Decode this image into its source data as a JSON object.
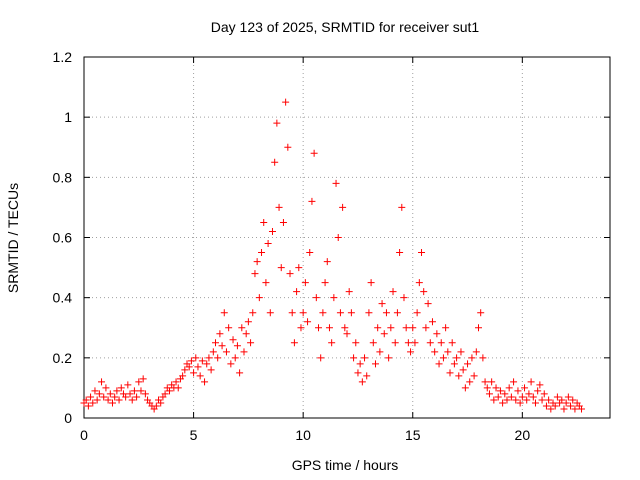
{
  "chart_data": {
    "type": "scatter",
    "title": "Day 123 of 2025, SRMTID for receiver sut1",
    "xlabel": "GPS time / hours",
    "ylabel": "SRMTID / TECUs",
    "xlim": [
      0,
      24
    ],
    "ylim": [
      0,
      1.2
    ],
    "xticks": [
      0,
      5,
      10,
      15,
      20
    ],
    "xtick_labels": [
      "0",
      "5",
      "10",
      "15",
      "20"
    ],
    "yticks": [
      0,
      0.2,
      0.4,
      0.6,
      0.8,
      1.0,
      1.2
    ],
    "ytick_labels": [
      "0",
      "0.2",
      "0.4",
      "0.6",
      "0.8",
      "1",
      "1.2"
    ],
    "grid": true,
    "marker": "+",
    "color": "#ff0000",
    "series": [
      {
        "name": "SRMTID",
        "points": [
          [
            0.0,
            0.05
          ],
          [
            0.1,
            0.06
          ],
          [
            0.2,
            0.04
          ],
          [
            0.3,
            0.07
          ],
          [
            0.4,
            0.05
          ],
          [
            0.5,
            0.09
          ],
          [
            0.6,
            0.06
          ],
          [
            0.7,
            0.08
          ],
          [
            0.8,
            0.12
          ],
          [
            0.9,
            0.07
          ],
          [
            1.0,
            0.1
          ],
          [
            1.1,
            0.06
          ],
          [
            1.2,
            0.08
          ],
          [
            1.3,
            0.05
          ],
          [
            1.4,
            0.07
          ],
          [
            1.5,
            0.09
          ],
          [
            1.6,
            0.06
          ],
          [
            1.7,
            0.1
          ],
          [
            1.8,
            0.08
          ],
          [
            1.9,
            0.07
          ],
          [
            2.0,
            0.11
          ],
          [
            2.1,
            0.08
          ],
          [
            2.2,
            0.06
          ],
          [
            2.3,
            0.09
          ],
          [
            2.4,
            0.07
          ],
          [
            2.5,
            0.12
          ],
          [
            2.6,
            0.09
          ],
          [
            2.7,
            0.13
          ],
          [
            2.8,
            0.08
          ],
          [
            2.9,
            0.06
          ],
          [
            3.0,
            0.05
          ],
          [
            3.1,
            0.04
          ],
          [
            3.2,
            0.03
          ],
          [
            3.3,
            0.04
          ],
          [
            3.4,
            0.06
          ],
          [
            3.5,
            0.05
          ],
          [
            3.6,
            0.07
          ],
          [
            3.7,
            0.08
          ],
          [
            3.8,
            0.1
          ],
          [
            3.9,
            0.09
          ],
          [
            4.0,
            0.11
          ],
          [
            4.1,
            0.1
          ],
          [
            4.2,
            0.12
          ],
          [
            4.3,
            0.1
          ],
          [
            4.4,
            0.13
          ],
          [
            4.5,
            0.14
          ],
          [
            4.6,
            0.16
          ],
          [
            4.7,
            0.18
          ],
          [
            4.8,
            0.17
          ],
          [
            4.9,
            0.19
          ],
          [
            5.0,
            0.15
          ],
          [
            5.1,
            0.2
          ],
          [
            5.2,
            0.17
          ],
          [
            5.3,
            0.14
          ],
          [
            5.4,
            0.19
          ],
          [
            5.5,
            0.12
          ],
          [
            5.6,
            0.18
          ],
          [
            5.7,
            0.2
          ],
          [
            5.8,
            0.16
          ],
          [
            5.9,
            0.22
          ],
          [
            6.0,
            0.25
          ],
          [
            6.1,
            0.2
          ],
          [
            6.2,
            0.28
          ],
          [
            6.3,
            0.24
          ],
          [
            6.4,
            0.35
          ],
          [
            6.5,
            0.22
          ],
          [
            6.6,
            0.3
          ],
          [
            6.7,
            0.18
          ],
          [
            6.8,
            0.26
          ],
          [
            6.9,
            0.2
          ],
          [
            7.0,
            0.24
          ],
          [
            7.1,
            0.15
          ],
          [
            7.2,
            0.3
          ],
          [
            7.3,
            0.22
          ],
          [
            7.4,
            0.28
          ],
          [
            7.5,
            0.32
          ],
          [
            7.6,
            0.25
          ],
          [
            7.7,
            0.35
          ],
          [
            7.8,
            0.48
          ],
          [
            7.9,
            0.52
          ],
          [
            8.0,
            0.4
          ],
          [
            8.1,
            0.55
          ],
          [
            8.2,
            0.65
          ],
          [
            8.3,
            0.45
          ],
          [
            8.4,
            0.58
          ],
          [
            8.5,
            0.35
          ],
          [
            8.6,
            0.62
          ],
          [
            8.7,
            0.85
          ],
          [
            8.8,
            0.98
          ],
          [
            8.9,
            0.7
          ],
          [
            9.0,
            0.5
          ],
          [
            9.1,
            0.65
          ],
          [
            9.2,
            1.05
          ],
          [
            9.3,
            0.9
          ],
          [
            9.4,
            0.48
          ],
          [
            9.5,
            0.35
          ],
          [
            9.6,
            0.25
          ],
          [
            9.7,
            0.42
          ],
          [
            9.8,
            0.5
          ],
          [
            9.9,
            0.3
          ],
          [
            10.0,
            0.35
          ],
          [
            10.1,
            0.45
          ],
          [
            10.2,
            0.32
          ],
          [
            10.3,
            0.55
          ],
          [
            10.4,
            0.72
          ],
          [
            10.5,
            0.88
          ],
          [
            10.6,
            0.4
          ],
          [
            10.7,
            0.3
          ],
          [
            10.8,
            0.2
          ],
          [
            10.9,
            0.35
          ],
          [
            11.0,
            0.45
          ],
          [
            11.1,
            0.52
          ],
          [
            11.2,
            0.3
          ],
          [
            11.3,
            0.25
          ],
          [
            11.4,
            0.4
          ],
          [
            11.5,
            0.78
          ],
          [
            11.6,
            0.6
          ],
          [
            11.7,
            0.35
          ],
          [
            11.8,
            0.7
          ],
          [
            11.9,
            0.3
          ],
          [
            12.0,
            0.28
          ],
          [
            12.1,
            0.42
          ],
          [
            12.2,
            0.35
          ],
          [
            12.3,
            0.2
          ],
          [
            12.4,
            0.25
          ],
          [
            12.5,
            0.15
          ],
          [
            12.6,
            0.18
          ],
          [
            12.7,
            0.12
          ],
          [
            12.8,
            0.2
          ],
          [
            12.9,
            0.14
          ],
          [
            13.0,
            0.35
          ],
          [
            13.1,
            0.45
          ],
          [
            13.2,
            0.25
          ],
          [
            13.3,
            0.18
          ],
          [
            13.4,
            0.3
          ],
          [
            13.5,
            0.22
          ],
          [
            13.6,
            0.38
          ],
          [
            13.7,
            0.28
          ],
          [
            13.8,
            0.35
          ],
          [
            13.9,
            0.2
          ],
          [
            14.0,
            0.3
          ],
          [
            14.1,
            0.42
          ],
          [
            14.2,
            0.25
          ],
          [
            14.3,
            0.35
          ],
          [
            14.4,
            0.55
          ],
          [
            14.5,
            0.7
          ],
          [
            14.6,
            0.4
          ],
          [
            14.7,
            0.3
          ],
          [
            14.8,
            0.25
          ],
          [
            14.9,
            0.22
          ],
          [
            15.0,
            0.3
          ],
          [
            15.1,
            0.25
          ],
          [
            15.2,
            0.35
          ],
          [
            15.3,
            0.45
          ],
          [
            15.4,
            0.55
          ],
          [
            15.5,
            0.42
          ],
          [
            15.6,
            0.3
          ],
          [
            15.7,
            0.38
          ],
          [
            15.8,
            0.25
          ],
          [
            15.9,
            0.32
          ],
          [
            16.0,
            0.22
          ],
          [
            16.1,
            0.28
          ],
          [
            16.2,
            0.18
          ],
          [
            16.3,
            0.25
          ],
          [
            16.4,
            0.2
          ],
          [
            16.5,
            0.3
          ],
          [
            16.6,
            0.22
          ],
          [
            16.7,
            0.15
          ],
          [
            16.8,
            0.25
          ],
          [
            16.9,
            0.18
          ],
          [
            17.0,
            0.2
          ],
          [
            17.1,
            0.14
          ],
          [
            17.2,
            0.22
          ],
          [
            17.3,
            0.16
          ],
          [
            17.4,
            0.1
          ],
          [
            17.5,
            0.18
          ],
          [
            17.6,
            0.12
          ],
          [
            17.7,
            0.2
          ],
          [
            17.8,
            0.14
          ],
          [
            17.9,
            0.22
          ],
          [
            18.0,
            0.3
          ],
          [
            18.1,
            0.35
          ],
          [
            18.2,
            0.2
          ],
          [
            18.3,
            0.12
          ],
          [
            18.4,
            0.1
          ],
          [
            18.5,
            0.08
          ],
          [
            18.6,
            0.12
          ],
          [
            18.7,
            0.06
          ],
          [
            18.8,
            0.1
          ],
          [
            18.9,
            0.07
          ],
          [
            19.0,
            0.09
          ],
          [
            19.1,
            0.05
          ],
          [
            19.2,
            0.08
          ],
          [
            19.3,
            0.06
          ],
          [
            19.4,
            0.1
          ],
          [
            19.5,
            0.07
          ],
          [
            19.6,
            0.12
          ],
          [
            19.7,
            0.06
          ],
          [
            19.8,
            0.09
          ],
          [
            19.9,
            0.05
          ],
          [
            20.0,
            0.07
          ],
          [
            20.1,
            0.1
          ],
          [
            20.2,
            0.06
          ],
          [
            20.3,
            0.08
          ],
          [
            20.4,
            0.12
          ],
          [
            20.5,
            0.07
          ],
          [
            20.6,
            0.05
          ],
          [
            20.7,
            0.09
          ],
          [
            20.8,
            0.11
          ],
          [
            20.9,
            0.06
          ],
          [
            21.0,
            0.08
          ],
          [
            21.1,
            0.04
          ],
          [
            21.2,
            0.06
          ],
          [
            21.3,
            0.03
          ],
          [
            21.4,
            0.05
          ],
          [
            21.5,
            0.04
          ],
          [
            21.6,
            0.07
          ],
          [
            21.7,
            0.05
          ],
          [
            21.8,
            0.06
          ],
          [
            21.9,
            0.03
          ],
          [
            22.0,
            0.05
          ],
          [
            22.1,
            0.07
          ],
          [
            22.2,
            0.04
          ],
          [
            22.3,
            0.06
          ],
          [
            22.4,
            0.03
          ],
          [
            22.5,
            0.05
          ],
          [
            22.6,
            0.04
          ],
          [
            22.7,
            0.03
          ]
        ]
      }
    ]
  }
}
